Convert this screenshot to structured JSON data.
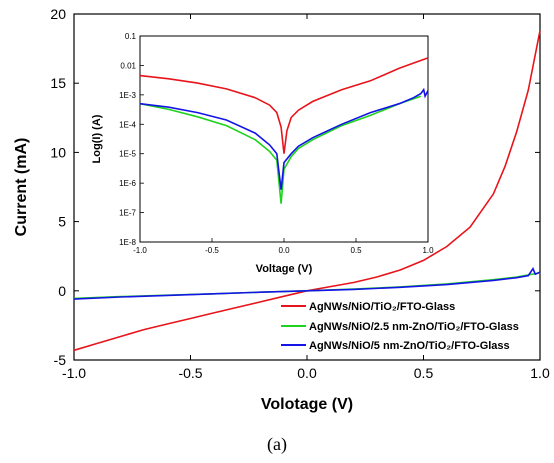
{
  "figure": {
    "caption": "(a)"
  },
  "chart_data": [
    {
      "type": "line",
      "xlabel": "Volotage (V)",
      "ylabel": "Current (mA)",
      "xlim": [
        -1.0,
        1.0
      ],
      "ylim": [
        -5,
        20
      ],
      "xticks": [
        -1.0,
        -0.5,
        0.0,
        0.5,
        1.0
      ],
      "xtick_labels": [
        "-1.0",
        "-0.5",
        "0.0",
        "0.5",
        "1.0"
      ],
      "yticks": [
        -5,
        0,
        5,
        10,
        15,
        20
      ],
      "ytick_labels": [
        "-5",
        "0",
        "5",
        "10",
        "15",
        "20"
      ],
      "legend_position": "bottom-right",
      "series": [
        {
          "name": "AgNWs/NiO/TiO₂/FTO-Glass",
          "color": "#e8141b",
          "x": [
            -1.0,
            -0.9,
            -0.8,
            -0.7,
            -0.6,
            -0.5,
            -0.4,
            -0.3,
            -0.2,
            -0.1,
            0.0,
            0.1,
            0.2,
            0.3,
            0.4,
            0.5,
            0.6,
            0.7,
            0.8,
            0.85,
            0.9,
            0.95,
            1.0
          ],
          "y": [
            -4.3,
            -3.8,
            -3.3,
            -2.8,
            -2.4,
            -2.0,
            -1.6,
            -1.2,
            -0.8,
            -0.4,
            0.0,
            0.3,
            0.6,
            1.0,
            1.5,
            2.2,
            3.2,
            4.6,
            7.0,
            9.0,
            11.5,
            14.5,
            18.8
          ]
        },
        {
          "name": "AgNWs/NiO/2.5 nm-ZnO/TiO₂/FTO-Glass",
          "color": "#1ed21e",
          "x": [
            -1.0,
            -0.8,
            -0.6,
            -0.4,
            -0.2,
            0.0,
            0.2,
            0.4,
            0.6,
            0.8,
            0.9,
            0.95,
            1.0
          ],
          "y": [
            -0.55,
            -0.42,
            -0.32,
            -0.22,
            -0.1,
            0.0,
            0.12,
            0.28,
            0.5,
            0.8,
            1.0,
            1.15,
            1.3
          ]
        },
        {
          "name": "AgNWs/NiO/5 nm-ZnO/TiO₂/FTO-Glass",
          "color": "#1414e6",
          "x": [
            -1.0,
            -0.8,
            -0.6,
            -0.4,
            -0.2,
            0.0,
            0.2,
            0.4,
            0.6,
            0.8,
            0.9,
            0.95,
            0.97,
            0.98,
            1.0
          ],
          "y": [
            -0.6,
            -0.45,
            -0.33,
            -0.22,
            -0.1,
            0.0,
            0.1,
            0.25,
            0.45,
            0.75,
            0.95,
            1.1,
            1.6,
            1.2,
            1.35
          ]
        }
      ]
    },
    {
      "type": "line",
      "xlabel": "Voltage (V)",
      "ylabel": "Log(I) (A)",
      "xlim": [
        -1.0,
        1.0
      ],
      "ylim": [
        1e-08,
        0.1
      ],
      "yscale": "log",
      "xticks": [
        -1.0,
        -0.5,
        0.0,
        0.5,
        1.0
      ],
      "xtick_labels": [
        "-1.0",
        "-0.5",
        "0.0",
        "0.5",
        "1.0"
      ],
      "yticks": [
        1e-08,
        1e-07,
        1e-06,
        1e-05,
        0.0001,
        0.001,
        0.01,
        0.1
      ],
      "ytick_labels": [
        "1E-8",
        "1E-7",
        "1E-6",
        "1E-5",
        "1E-4",
        "1E-3",
        "0.01",
        "0.1"
      ],
      "series": [
        {
          "color": "#e8141b",
          "x": [
            -1.0,
            -0.8,
            -0.6,
            -0.4,
            -0.2,
            -0.1,
            -0.05,
            -0.02,
            0.0,
            0.02,
            0.05,
            0.1,
            0.2,
            0.4,
            0.6,
            0.8,
            1.0
          ],
          "y": [
            0.0045,
            0.0035,
            0.0025,
            0.0016,
            0.0008,
            0.00045,
            0.00025,
            8e-05,
            1e-05,
            6e-05,
            0.00017,
            0.0003,
            0.0006,
            0.0015,
            0.003,
            0.008,
            0.018
          ]
        },
        {
          "color": "#1ed21e",
          "x": [
            -1.0,
            -0.8,
            -0.6,
            -0.4,
            -0.2,
            -0.1,
            -0.05,
            -0.02,
            0.0,
            0.05,
            0.1,
            0.2,
            0.4,
            0.6,
            0.8,
            0.95
          ],
          "y": [
            0.0005,
            0.00032,
            0.00018,
            9e-05,
            3e-05,
            1.2e-05,
            6e-06,
            2e-07,
            3e-06,
            8e-06,
            1.5e-05,
            3e-05,
            9e-05,
            0.0002,
            0.0005,
            0.0009
          ]
        },
        {
          "color": "#1414e6",
          "x": [
            -1.0,
            -0.8,
            -0.6,
            -0.4,
            -0.2,
            -0.1,
            -0.05,
            -0.02,
            0.0,
            0.05,
            0.1,
            0.2,
            0.4,
            0.6,
            0.8,
            0.9,
            0.95,
            0.97,
            0.98,
            1.0
          ],
          "y": [
            0.0005,
            0.00038,
            0.00025,
            0.00014,
            5e-05,
            2e-05,
            1e-05,
            6e-07,
            5e-06,
            1e-05,
            1.8e-05,
            3.5e-05,
            0.0001,
            0.00025,
            0.0005,
            0.0008,
            0.0011,
            0.0015,
            0.0009,
            0.0014
          ]
        }
      ]
    }
  ]
}
